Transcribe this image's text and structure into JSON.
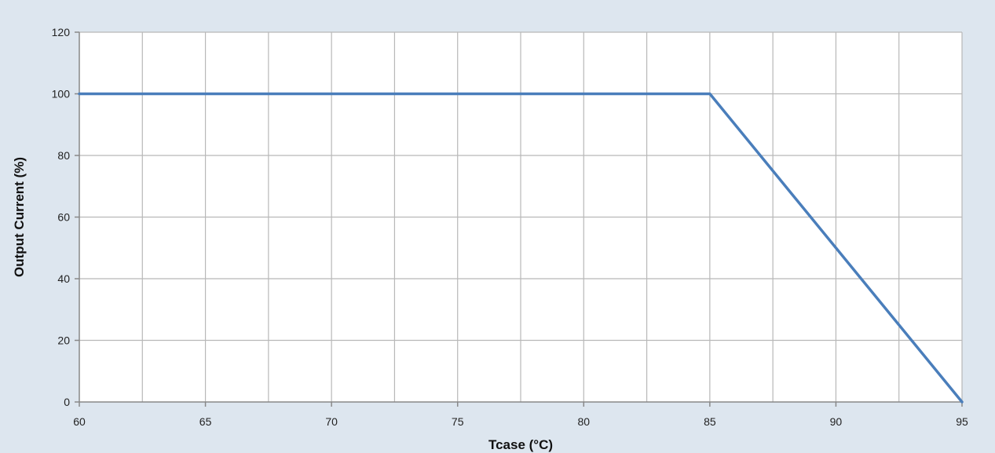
{
  "chart_data": {
    "type": "line",
    "title": "",
    "xlabel": "Tcase (°C)",
    "ylabel": "Output Current (%)",
    "xlim": [
      60,
      95
    ],
    "ylim": [
      0,
      120
    ],
    "x_ticks": [
      60,
      65,
      70,
      75,
      80,
      85,
      90,
      95
    ],
    "y_ticks": [
      0,
      20,
      40,
      60,
      80,
      100,
      120
    ],
    "x_minor_step": 2.5,
    "grid": true,
    "legend": "none",
    "series": [
      {
        "x": [
          60,
          85,
          95
        ],
        "y": [
          100,
          100,
          0
        ],
        "color": "#4a7ebb"
      }
    ],
    "colors": {
      "background": "#dde6ef",
      "plot_area": "#ffffff",
      "grid": "#b8b8b8",
      "axis": "#888888"
    }
  }
}
